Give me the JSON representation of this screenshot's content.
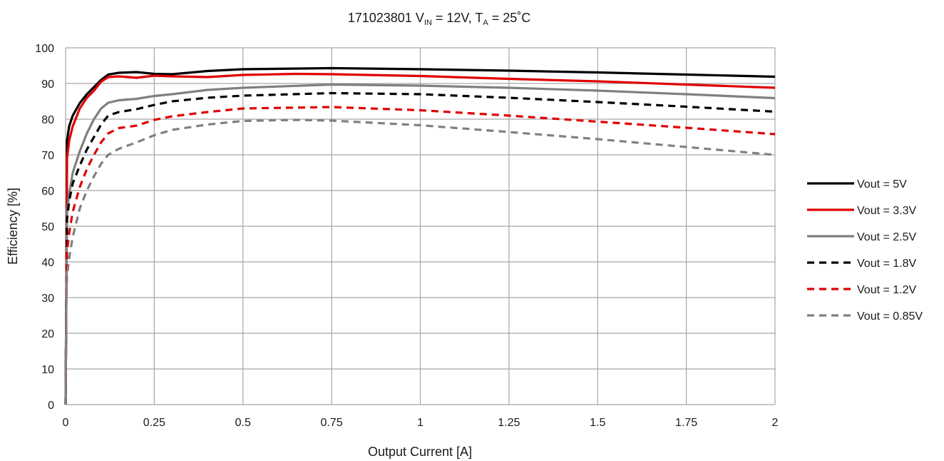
{
  "chart_data": {
    "type": "line",
    "title": {
      "part_number": "171023801",
      "vin_main": "V",
      "vin_sub": "IN",
      "vin_value": " = 12V, ",
      "ta_main": "T",
      "ta_sub": "A",
      "ta_value": " = 25˚C"
    },
    "xlabel": "Output Current [A]",
    "ylabel": "Efficiency [%]",
    "xlim": [
      0,
      2
    ],
    "ylim": [
      0,
      100
    ],
    "xticks": [
      "0",
      "0.25",
      "0.5",
      "0.75",
      "1",
      "1.25",
      "1.5",
      "1.75",
      "2"
    ],
    "yticks": [
      "0",
      "10",
      "20",
      "30",
      "40",
      "50",
      "60",
      "70",
      "80",
      "90",
      "100"
    ],
    "grid": true,
    "legend_position": "right",
    "series": [
      {
        "name": "Vout = 5V",
        "color": "#000000",
        "dash": "solid",
        "points": [
          [
            0,
            0
          ],
          [
            0.002,
            30
          ],
          [
            0.004,
            74
          ],
          [
            0.01,
            78
          ],
          [
            0.02,
            81
          ],
          [
            0.04,
            84.5
          ],
          [
            0.06,
            87
          ],
          [
            0.08,
            89
          ],
          [
            0.1,
            91
          ],
          [
            0.12,
            92.5
          ],
          [
            0.15,
            93
          ],
          [
            0.2,
            93.2
          ],
          [
            0.25,
            92.7
          ],
          [
            0.3,
            92.6
          ],
          [
            0.4,
            93.5
          ],
          [
            0.5,
            94
          ],
          [
            0.75,
            94.3
          ],
          [
            1,
            94
          ],
          [
            1.25,
            93.6
          ],
          [
            1.5,
            93.1
          ],
          [
            1.75,
            92.5
          ],
          [
            2,
            91.9
          ]
        ]
      },
      {
        "name": "Vout = 3.3V",
        "color": "#e00000",
        "dash": "solid",
        "points": [
          [
            0,
            0
          ],
          [
            0.002,
            30
          ],
          [
            0.004,
            69
          ],
          [
            0.01,
            74
          ],
          [
            0.02,
            78
          ],
          [
            0.04,
            83
          ],
          [
            0.06,
            86
          ],
          [
            0.08,
            88
          ],
          [
            0.1,
            90.5
          ],
          [
            0.12,
            91.8
          ],
          [
            0.15,
            92
          ],
          [
            0.2,
            91.6
          ],
          [
            0.25,
            92.2
          ],
          [
            0.3,
            92
          ],
          [
            0.4,
            91.8
          ],
          [
            0.5,
            92.4
          ],
          [
            0.65,
            92.7
          ],
          [
            0.75,
            92.6
          ],
          [
            1,
            92.1
          ],
          [
            1.25,
            91.3
          ],
          [
            1.5,
            90.6
          ],
          [
            1.75,
            89.7
          ],
          [
            2,
            88.8
          ]
        ]
      },
      {
        "name": "Vout = 2.5V",
        "color": "#808080",
        "dash": "solid",
        "points": [
          [
            0,
            0
          ],
          [
            0.002,
            30
          ],
          [
            0.004,
            54
          ],
          [
            0.01,
            59
          ],
          [
            0.02,
            65
          ],
          [
            0.04,
            71
          ],
          [
            0.06,
            76
          ],
          [
            0.08,
            80
          ],
          [
            0.1,
            83
          ],
          [
            0.12,
            84.6
          ],
          [
            0.15,
            85.3
          ],
          [
            0.2,
            85.7
          ],
          [
            0.25,
            86.5
          ],
          [
            0.3,
            87
          ],
          [
            0.4,
            88.2
          ],
          [
            0.5,
            88.8
          ],
          [
            0.75,
            89.7
          ],
          [
            1,
            89.4
          ],
          [
            1.25,
            88.8
          ],
          [
            1.5,
            88
          ],
          [
            1.75,
            87
          ],
          [
            2,
            85.9
          ]
        ]
      },
      {
        "name": "Vout = 1.8V",
        "color": "#000000",
        "dash": "dashed",
        "points": [
          [
            0,
            0
          ],
          [
            0.002,
            30
          ],
          [
            0.004,
            52
          ],
          [
            0.01,
            57
          ],
          [
            0.02,
            62
          ],
          [
            0.04,
            67
          ],
          [
            0.06,
            71.5
          ],
          [
            0.08,
            75
          ],
          [
            0.1,
            78.5
          ],
          [
            0.12,
            81
          ],
          [
            0.15,
            82
          ],
          [
            0.2,
            82.8
          ],
          [
            0.25,
            84
          ],
          [
            0.3,
            85
          ],
          [
            0.4,
            86
          ],
          [
            0.5,
            86.6
          ],
          [
            0.75,
            87.3
          ],
          [
            1,
            87
          ],
          [
            1.25,
            86
          ],
          [
            1.5,
            84.8
          ],
          [
            1.75,
            83.5
          ],
          [
            2,
            82.1
          ]
        ]
      },
      {
        "name": "Vout = 1.2V",
        "color": "#e00000",
        "dash": "dashed",
        "points": [
          [
            0,
            0
          ],
          [
            0.002,
            30
          ],
          [
            0.004,
            43
          ],
          [
            0.01,
            48
          ],
          [
            0.02,
            54
          ],
          [
            0.04,
            61
          ],
          [
            0.06,
            66
          ],
          [
            0.08,
            70
          ],
          [
            0.1,
            73.5
          ],
          [
            0.12,
            76
          ],
          [
            0.15,
            77.5
          ],
          [
            0.2,
            78.2
          ],
          [
            0.25,
            79.8
          ],
          [
            0.3,
            80.8
          ],
          [
            0.4,
            82
          ],
          [
            0.5,
            83
          ],
          [
            0.75,
            83.4
          ],
          [
            1,
            82.5
          ],
          [
            1.25,
            81
          ],
          [
            1.5,
            79.3
          ],
          [
            1.75,
            77.6
          ],
          [
            2,
            75.8
          ]
        ]
      },
      {
        "name": "Vout = 0.85V",
        "color": "#808080",
        "dash": "dashed",
        "points": [
          [
            0,
            0
          ],
          [
            0.002,
            30
          ],
          [
            0.004,
            36
          ],
          [
            0.01,
            41
          ],
          [
            0.02,
            47
          ],
          [
            0.04,
            55
          ],
          [
            0.06,
            60
          ],
          [
            0.08,
            64
          ],
          [
            0.1,
            67.5
          ],
          [
            0.12,
            70
          ],
          [
            0.15,
            71.7
          ],
          [
            0.2,
            73.5
          ],
          [
            0.25,
            75.5
          ],
          [
            0.3,
            77
          ],
          [
            0.4,
            78.5
          ],
          [
            0.5,
            79.5
          ],
          [
            0.65,
            79.8
          ],
          [
            0.75,
            79.6
          ],
          [
            1,
            78.3
          ],
          [
            1.25,
            76.4
          ],
          [
            1.5,
            74.4
          ],
          [
            1.75,
            72.2
          ],
          [
            2,
            70
          ]
        ]
      }
    ]
  }
}
